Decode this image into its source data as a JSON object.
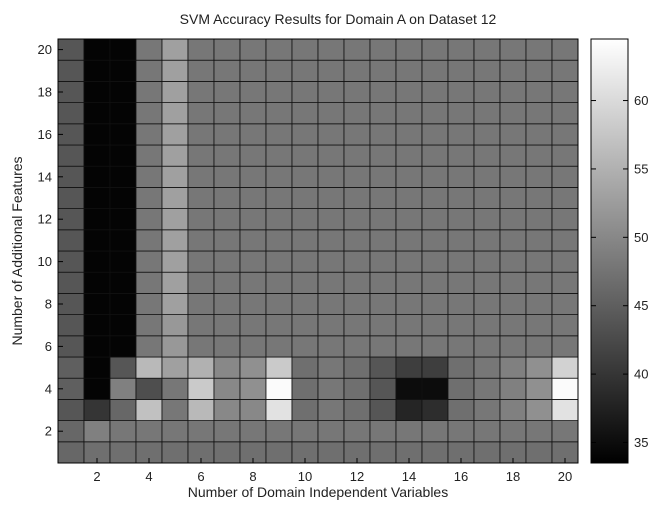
{
  "chart_data": {
    "type": "heatmap",
    "title": "SVM Accuracy Results for Domain A on Dataset 12",
    "xlabel": "Number of Domain Independent Variables",
    "ylabel": "Number of Additional Features",
    "x": [
      1,
      2,
      3,
      4,
      5,
      6,
      7,
      8,
      9,
      10,
      11,
      12,
      13,
      14,
      15,
      16,
      17,
      18,
      19,
      20
    ],
    "y": [
      1,
      2,
      3,
      4,
      5,
      6,
      7,
      8,
      9,
      10,
      11,
      12,
      13,
      14,
      15,
      16,
      17,
      18,
      19,
      20
    ],
    "xticks": [
      2,
      4,
      6,
      8,
      10,
      12,
      14,
      16,
      18,
      20
    ],
    "yticks": [
      2,
      4,
      6,
      8,
      10,
      12,
      14,
      16,
      18,
      20
    ],
    "xlim": [
      0.5,
      20.5
    ],
    "ylim": [
      0.5,
      20.5
    ],
    "colormap": "gray",
    "clim": [
      33.5,
      64.5
    ],
    "colorbar_ticks": [
      35,
      40,
      45,
      50,
      55,
      60
    ],
    "grid": false,
    "values": [
      [
        46,
        47,
        47,
        47,
        47,
        47,
        47,
        47,
        47,
        47,
        47,
        47,
        47,
        47,
        47,
        47,
        47,
        47,
        47,
        47
      ],
      [
        46,
        49,
        48,
        48,
        48,
        48,
        48,
        48,
        48,
        48,
        48,
        48,
        48,
        48,
        48,
        48,
        48,
        48,
        48,
        48
      ],
      [
        44,
        40,
        46,
        57,
        48,
        56,
        50,
        50,
        61,
        47,
        48,
        47,
        44,
        38,
        39,
        47,
        48,
        49,
        51,
        61
      ],
      [
        45,
        34,
        49,
        43,
        48,
        58,
        50,
        51,
        64,
        47,
        48,
        47,
        44,
        35,
        35,
        47,
        48,
        49,
        51,
        64
      ],
      [
        45,
        34,
        44,
        56,
        53,
        55,
        50,
        51,
        58,
        47,
        48,
        47,
        44,
        41,
        41,
        47,
        48,
        49,
        51,
        59
      ],
      [
        44,
        34,
        34,
        48,
        52,
        48,
        48,
        48,
        48,
        48,
        48,
        48,
        48,
        48,
        48,
        48,
        48,
        48,
        48,
        48
      ],
      [
        44,
        34,
        34,
        48,
        52,
        48,
        48,
        48,
        48,
        48,
        48,
        48,
        48,
        48,
        48,
        48,
        48,
        48,
        48,
        48
      ],
      [
        44,
        34,
        34,
        48,
        53,
        48,
        48,
        48,
        48,
        48,
        48,
        48,
        48,
        48,
        48,
        48,
        48,
        48,
        48,
        48
      ],
      [
        44,
        34,
        34,
        48,
        53,
        48,
        48,
        48,
        48,
        48,
        48,
        48,
        48,
        48,
        48,
        48,
        48,
        48,
        48,
        48
      ],
      [
        44,
        34,
        34,
        48,
        53,
        48,
        48,
        48,
        48,
        48,
        48,
        48,
        48,
        48,
        48,
        48,
        48,
        48,
        48,
        48
      ],
      [
        44,
        34,
        34,
        48,
        53,
        48,
        48,
        48,
        48,
        48,
        48,
        48,
        48,
        48,
        48,
        48,
        48,
        48,
        48,
        48
      ],
      [
        44,
        34,
        34,
        48,
        53,
        48,
        48,
        48,
        48,
        48,
        48,
        48,
        48,
        48,
        48,
        48,
        48,
        48,
        48,
        48
      ],
      [
        44,
        34,
        34,
        48,
        53,
        48,
        48,
        48,
        48,
        48,
        48,
        48,
        48,
        48,
        48,
        48,
        48,
        48,
        48,
        48
      ],
      [
        44,
        34,
        34,
        48,
        53,
        48,
        48,
        48,
        48,
        48,
        48,
        48,
        48,
        48,
        48,
        48,
        48,
        48,
        48,
        48
      ],
      [
        44,
        34,
        34,
        48,
        53,
        48,
        48,
        48,
        48,
        48,
        48,
        48,
        48,
        48,
        48,
        48,
        48,
        48,
        48,
        48
      ],
      [
        44,
        34,
        34,
        48,
        53,
        48,
        48,
        48,
        48,
        48,
        48,
        48,
        48,
        48,
        48,
        48,
        48,
        48,
        48,
        48
      ],
      [
        44,
        34,
        34,
        48,
        53,
        48,
        48,
        48,
        48,
        48,
        48,
        48,
        48,
        48,
        48,
        48,
        48,
        48,
        48,
        48
      ],
      [
        44,
        34,
        34,
        48,
        53,
        48,
        48,
        48,
        48,
        48,
        48,
        48,
        48,
        48,
        48,
        48,
        48,
        48,
        48,
        48
      ],
      [
        44,
        34,
        34,
        48,
        53,
        48,
        48,
        48,
        48,
        48,
        48,
        48,
        48,
        48,
        48,
        48,
        48,
        48,
        48,
        48
      ],
      [
        44,
        34,
        34,
        48,
        53,
        48,
        48,
        48,
        48,
        48,
        48,
        48,
        48,
        48,
        48,
        48,
        48,
        48,
        48,
        48
      ]
    ]
  }
}
